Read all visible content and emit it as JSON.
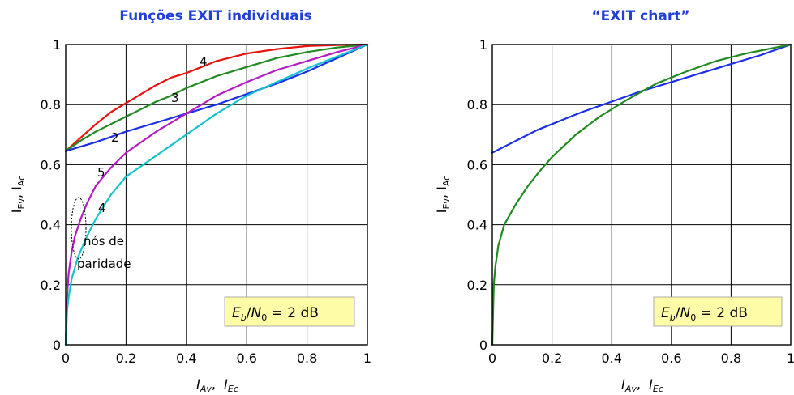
{
  "chart_data": [
    {
      "type": "line",
      "title": "Funções EXIT individuais",
      "xlabel": {
        "a": "I",
        "a_sub": "Av",
        "sep": ",  ",
        "b": "I",
        "b_sub": "Ec"
      },
      "ylabel": {
        "a": "I",
        "a_sub": "Ev",
        "sep": ", ",
        "b": "I",
        "b_sub": "Ac"
      },
      "xlim": [
        0,
        1
      ],
      "ylim": [
        0,
        1
      ],
      "xticks": [
        "0",
        "0.2",
        "0.4",
        "0.6",
        "0.8",
        "1"
      ],
      "yticks": [
        "0",
        "0.2",
        "0.4",
        "0.6",
        "0.8",
        "1"
      ],
      "grid": true,
      "snr_box": {
        "e": "E",
        "e_sub": "b",
        "slash": "/",
        "n": "N",
        "n_sub": "0",
        "rest": " = 2 dB"
      },
      "series": [
        {
          "label": "4",
          "color": "#e8140c",
          "x": [
            0,
            0.05,
            0.1,
            0.15,
            0.2,
            0.25,
            0.3,
            0.35,
            0.4,
            0.45,
            0.5,
            0.6,
            0.7,
            0.8,
            0.9,
            1.0
          ],
          "y": [
            0.645,
            0.69,
            0.735,
            0.775,
            0.805,
            0.835,
            0.865,
            0.89,
            0.905,
            0.925,
            0.945,
            0.97,
            0.985,
            0.995,
            0.998,
            1.0
          ]
        },
        {
          "label": "3",
          "color": "#1f8a1f",
          "x": [
            0,
            0.05,
            0.1,
            0.15,
            0.2,
            0.25,
            0.3,
            0.35,
            0.4,
            0.45,
            0.5,
            0.6,
            0.7,
            0.8,
            0.9,
            1.0
          ],
          "y": [
            0.645,
            0.68,
            0.71,
            0.735,
            0.76,
            0.785,
            0.81,
            0.83,
            0.855,
            0.875,
            0.895,
            0.925,
            0.955,
            0.975,
            0.99,
            1.0
          ]
        },
        {
          "label": "2",
          "color": "#1a2ee6",
          "x": [
            0,
            0.05,
            0.1,
            0.2,
            0.3,
            0.4,
            0.5,
            0.6,
            0.7,
            0.8,
            0.9,
            1.0
          ],
          "y": [
            0.645,
            0.66,
            0.675,
            0.71,
            0.74,
            0.77,
            0.8,
            0.835,
            0.87,
            0.91,
            0.955,
            1.0
          ]
        },
        {
          "label": "5",
          "color": "#b31bc4",
          "x": [
            0,
            0.005,
            0.01,
            0.02,
            0.03,
            0.05,
            0.07,
            0.1,
            0.15,
            0.2,
            0.3,
            0.4,
            0.5,
            0.6,
            0.7,
            0.8,
            0.9,
            1.0
          ],
          "y": [
            0,
            0.17,
            0.24,
            0.31,
            0.36,
            0.42,
            0.47,
            0.53,
            0.59,
            0.64,
            0.71,
            0.77,
            0.83,
            0.875,
            0.915,
            0.945,
            0.975,
            1.0
          ]
        },
        {
          "label": "4",
          "color": "#17c2cc",
          "x": [
            0,
            0.005,
            0.01,
            0.02,
            0.04,
            0.07,
            0.1,
            0.15,
            0.2,
            0.3,
            0.4,
            0.5,
            0.6,
            0.7,
            0.8,
            0.9,
            1.0
          ],
          "y": [
            0,
            0.12,
            0.16,
            0.22,
            0.29,
            0.36,
            0.42,
            0.5,
            0.56,
            0.63,
            0.7,
            0.77,
            0.83,
            0.875,
            0.92,
            0.96,
            1.0
          ]
        }
      ],
      "annotations": [
        {
          "text": "nós de"
        },
        {
          "text": "paridade"
        }
      ]
    },
    {
      "type": "line",
      "title": "“EXIT chart”",
      "xlabel": {
        "a": "I",
        "a_sub": "Av",
        "sep": ",  ",
        "b": "I",
        "b_sub": "Ec"
      },
      "ylabel": {
        "a": "I",
        "a_sub": "Ev",
        "sep": ", ",
        "b": "I",
        "b_sub": "Ac"
      },
      "xlim": [
        0,
        1
      ],
      "ylim": [
        0,
        1
      ],
      "xticks": [
        "0",
        "0.2",
        "0.4",
        "0.6",
        "0.8",
        "1"
      ],
      "yticks": [
        "0",
        "0.2",
        "0.4",
        "0.6",
        "0.8",
        "1"
      ],
      "grid": true,
      "snr_box": {
        "e": "E",
        "e_sub": "b",
        "slash": "/",
        "n": "N",
        "n_sub": "0",
        "rest": " = 2 dB"
      },
      "series": [
        {
          "color": "#1a2ee6",
          "x": [
            0,
            0.05,
            0.1,
            0.15,
            0.2,
            0.25,
            0.3,
            0.4,
            0.5,
            0.6,
            0.7,
            0.8,
            0.9,
            1.0
          ],
          "y": [
            0.64,
            0.665,
            0.69,
            0.715,
            0.735,
            0.755,
            0.775,
            0.81,
            0.845,
            0.875,
            0.905,
            0.935,
            0.965,
            1.0
          ]
        },
        {
          "color": "#1f8a1f",
          "x": [
            0,
            0.005,
            0.01,
            0.02,
            0.04,
            0.08,
            0.12,
            0.16,
            0.2,
            0.28,
            0.36,
            0.45,
            0.55,
            0.65,
            0.75,
            0.85,
            0.95,
            1.0
          ],
          "y": [
            0,
            0.2,
            0.26,
            0.33,
            0.4,
            0.47,
            0.53,
            0.58,
            0.625,
            0.7,
            0.76,
            0.815,
            0.87,
            0.91,
            0.945,
            0.97,
            0.99,
            1.0
          ]
        }
      ]
    }
  ]
}
